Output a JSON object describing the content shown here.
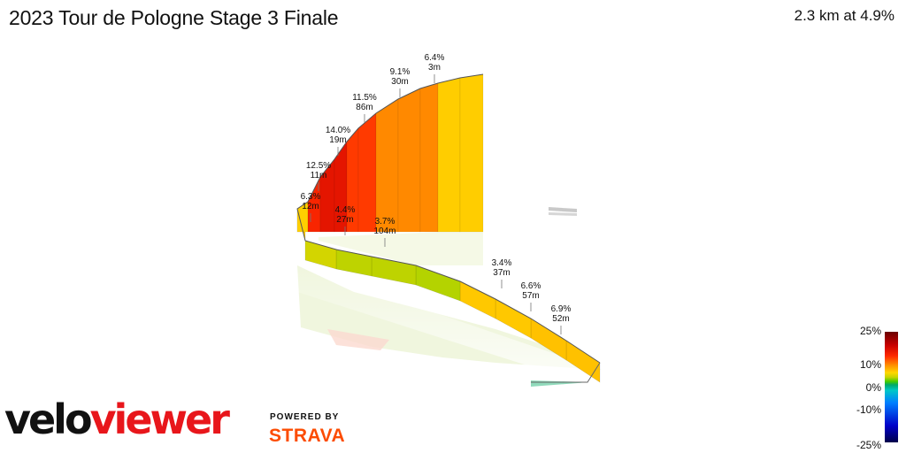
{
  "header": {
    "title": "2023 Tour de Pologne Stage 3 Finale",
    "summary": "2.3 km at 4.9%"
  },
  "chart_data": {
    "type": "area",
    "title": "2023 Tour de Pologne Stage 3 Finale",
    "subtitle": "2.3 km at 4.9%",
    "x_unit": "km",
    "y_unit": "m",
    "x_range": [
      0,
      2.3
    ],
    "segments": [
      {
        "label": "6.9%",
        "length": "52m",
        "gradient": 6.9
      },
      {
        "label": "6.6%",
        "length": "57m",
        "gradient": 6.6
      },
      {
        "label": "3.4%",
        "length": "37m",
        "gradient": 3.4
      },
      {
        "label": "3.7%",
        "length": "104m",
        "gradient": 3.7
      },
      {
        "label": "4.4%",
        "length": "27m",
        "gradient": 4.4
      },
      {
        "label": "6.3%",
        "length": "12m",
        "gradient": 6.3
      },
      {
        "label": "12.5%",
        "length": "11m",
        "gradient": 12.5
      },
      {
        "label": "14.0%",
        "length": "19m",
        "gradient": 14.0
      },
      {
        "label": "11.5%",
        "length": "86m",
        "gradient": 11.5
      },
      {
        "label": "9.1%",
        "length": "30m",
        "gradient": 9.1
      },
      {
        "label": "6.4%",
        "length": "3m",
        "gradient": 6.4
      }
    ],
    "legend": {
      "title": "",
      "ticks": [
        "25%",
        "10%",
        "0%",
        "-10%",
        "-25%"
      ],
      "placement": "bottom-right",
      "colors": {
        "max": "#6a0000",
        "high": "#ff2a00",
        "mid": "#ffd700",
        "zero": "#44cc00",
        "neg": "#00c8c8",
        "min": "#00004a"
      }
    }
  },
  "branding": {
    "velo": "velo",
    "viewer": "viewer",
    "powered_by": "POWERED BY",
    "strava": "STRAVA"
  }
}
